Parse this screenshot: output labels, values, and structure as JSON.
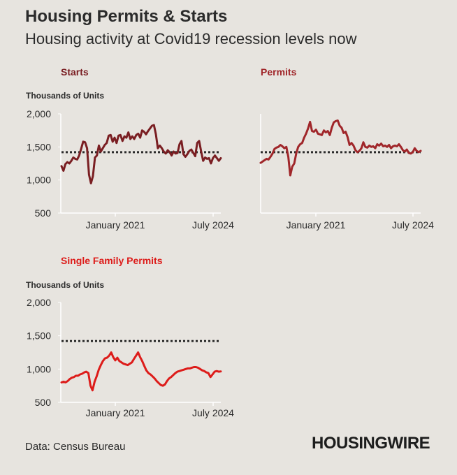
{
  "header": {
    "title": "Housing Permits & Starts",
    "subtitle": "Housing activity at Covid19 recession levels now"
  },
  "footer": {
    "source": "Data: Census Bureau",
    "logo": "HOUSINGWIRE"
  },
  "colors": {
    "starts": "#7a1e22",
    "permits": "#a0262a",
    "single_family": "#dd1c1a",
    "reference": "#2b2b2b",
    "background": "#e7e4df"
  },
  "chart_data": [
    {
      "type": "line",
      "title": "Starts",
      "ylabel": "Thousands of Units",
      "ylim": [
        500,
        2000
      ],
      "yticks": [
        "2,000",
        "1,500",
        "1,000",
        "500"
      ],
      "yticks_values": [
        2000,
        1500,
        1000,
        500
      ],
      "xticks": [
        "January 2021",
        "July 2024"
      ],
      "xlim": [
        "2019-01",
        "2024-07"
      ],
      "reference_line": 1420,
      "series": [
        {
          "values": [
            1210,
            1140,
            1240,
            1270,
            1250,
            1290,
            1340,
            1320,
            1310,
            1370,
            1470,
            1580,
            1570,
            1480,
            1080,
            950,
            1060,
            1340,
            1370,
            1520,
            1430,
            1480,
            1530,
            1560,
            1670,
            1680,
            1580,
            1640,
            1560,
            1670,
            1680,
            1590,
            1660,
            1640,
            1720,
            1620,
            1660,
            1620,
            1680,
            1700,
            1640,
            1750,
            1730,
            1690,
            1740,
            1780,
            1820,
            1830,
            1690,
            1480,
            1520,
            1480,
            1430,
            1400,
            1450,
            1420,
            1370,
            1430,
            1400,
            1410,
            1540,
            1590,
            1390,
            1350,
            1390,
            1440,
            1460,
            1410,
            1360,
            1560,
            1590,
            1430,
            1290,
            1340,
            1320,
            1330,
            1250,
            1330,
            1370,
            1330,
            1290,
            1330
          ]
        }
      ]
    },
    {
      "type": "line",
      "title": "Permits",
      "ylabel": "",
      "ylim": [
        500,
        2000
      ],
      "xticks": [
        "January 2021",
        "July 2024"
      ],
      "xlim": [
        "2019-01",
        "2024-07"
      ],
      "reference_line": 1420,
      "series": [
        {
          "values": [
            1260,
            1280,
            1300,
            1320,
            1310,
            1350,
            1400,
            1470,
            1490,
            1500,
            1530,
            1510,
            1480,
            1500,
            1350,
            1070,
            1200,
            1250,
            1400,
            1500,
            1540,
            1560,
            1640,
            1700,
            1780,
            1880,
            1740,
            1730,
            1760,
            1700,
            1690,
            1680,
            1750,
            1720,
            1740,
            1680,
            1790,
            1870,
            1890,
            1900,
            1820,
            1790,
            1710,
            1730,
            1650,
            1530,
            1560,
            1520,
            1450,
            1420,
            1440,
            1480,
            1570,
            1500,
            1490,
            1520,
            1500,
            1510,
            1480,
            1540,
            1520,
            1550,
            1510,
            1520,
            1500,
            1530,
            1480,
            1510,
            1520,
            1510,
            1540,
            1500,
            1450,
            1430,
            1460,
            1410,
            1400,
            1420,
            1480,
            1440,
            1420,
            1440
          ]
        }
      ]
    },
    {
      "type": "line",
      "title": "Single Family Permits",
      "ylabel": "Thousands of Units",
      "ylim": [
        500,
        2000
      ],
      "yticks": [
        "2,000",
        "1,500",
        "1,000",
        "500"
      ],
      "yticks_values": [
        2000,
        1500,
        1000,
        500
      ],
      "xticks": [
        "January 2021",
        "July 2024"
      ],
      "xlim": [
        "2019-01",
        "2024-07"
      ],
      "reference_line": 1420,
      "series": [
        {
          "values": [
            800,
            810,
            800,
            820,
            850,
            870,
            880,
            900,
            900,
            920,
            930,
            950,
            960,
            940,
            750,
            680,
            810,
            890,
            990,
            1060,
            1120,
            1160,
            1170,
            1200,
            1250,
            1180,
            1130,
            1170,
            1120,
            1100,
            1080,
            1070,
            1060,
            1080,
            1100,
            1150,
            1200,
            1250,
            1180,
            1120,
            1050,
            980,
            940,
            920,
            890,
            860,
            820,
            790,
            760,
            750,
            770,
            820,
            860,
            880,
            910,
            940,
            960,
            970,
            980,
            990,
            1000,
            1010,
            1010,
            1020,
            1030,
            1030,
            1020,
            1000,
            980,
            970,
            950,
            940,
            880,
            920,
            960,
            970,
            960,
            965
          ]
        }
      ]
    }
  ]
}
